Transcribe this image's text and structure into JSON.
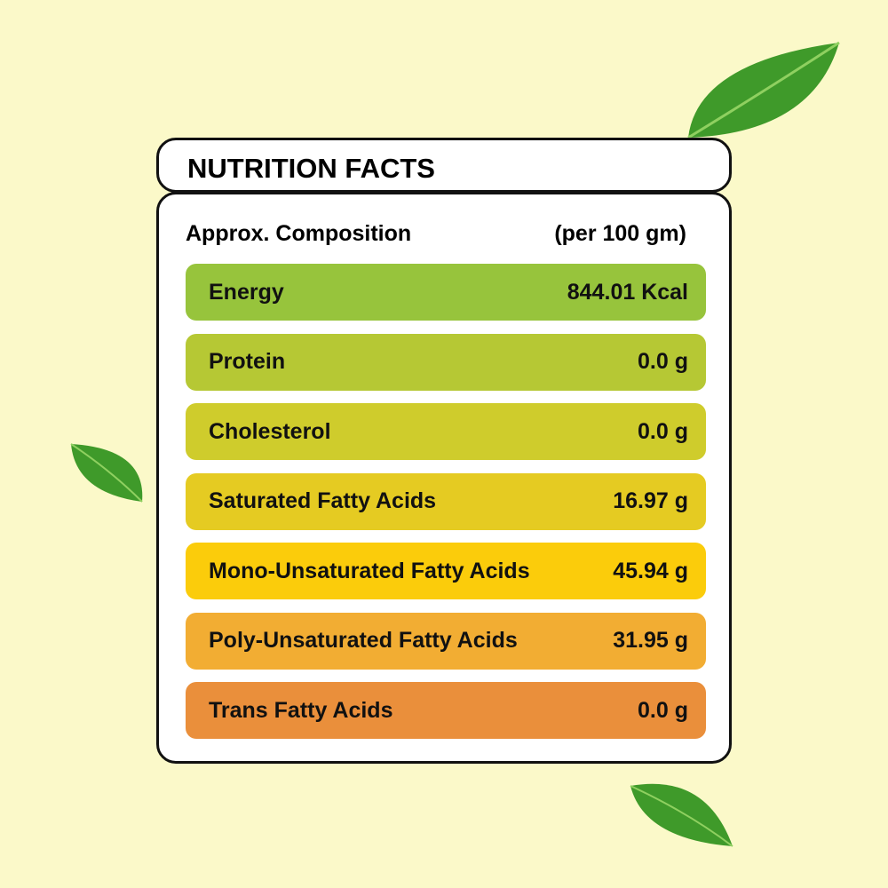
{
  "header": {
    "title": "NUTRITION FACTS"
  },
  "table": {
    "label": "Approx. Composition",
    "unit": "(per 100 gm)",
    "rows": [
      [
        "Energy",
        "844.01 Kcal"
      ],
      [
        "Protein",
        "0.0 g"
      ],
      [
        "Cholesterol",
        "0.0 g"
      ],
      [
        "Saturated Fatty Acids",
        "16.97 g"
      ],
      [
        "Mono-Unsaturated Fatty Acids",
        "45.94 g"
      ],
      [
        "Poly-Unsaturated Fatty Acids",
        "31.95 g"
      ],
      [
        "Trans Fatty Acids",
        "0.0 g"
      ]
    ]
  }
}
